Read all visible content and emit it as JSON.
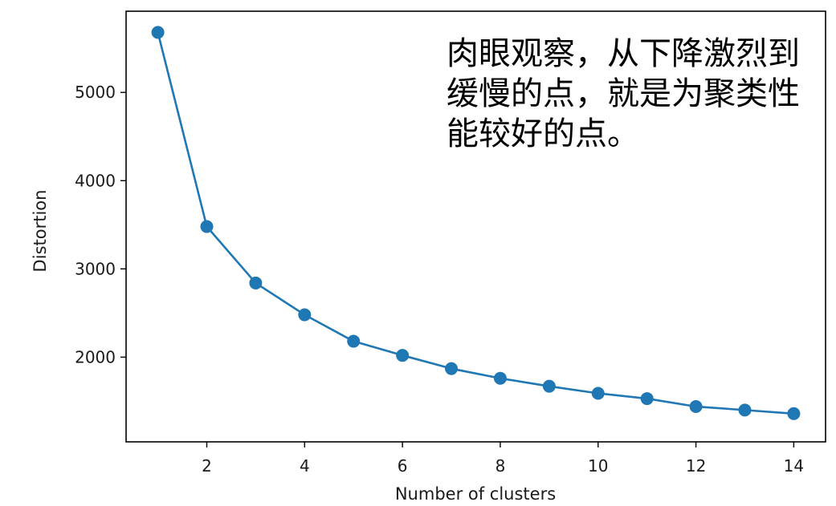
{
  "chart_data": {
    "type": "line",
    "title": "",
    "xlabel": "Number of clusters",
    "ylabel": "Distortion",
    "xlim": [
      0.35,
      14.65
    ],
    "ylim": [
      1040,
      5920
    ],
    "xticks": [
      2,
      4,
      6,
      8,
      10,
      12,
      14
    ],
    "yticks": [
      2000,
      3000,
      4000,
      5000
    ],
    "grid": false,
    "legend": "none",
    "series": [
      {
        "color": "#1f77b4",
        "marker": "circle",
        "x": [
          1,
          2,
          3,
          4,
          5,
          6,
          7,
          8,
          9,
          10,
          11,
          12,
          13,
          14
        ],
        "y": [
          5680,
          3480,
          2840,
          2480,
          2180,
          2020,
          1870,
          1760,
          1670,
          1590,
          1530,
          1440,
          1400,
          1360
        ]
      }
    ],
    "annotation": {
      "lines": [
        "肉眼观察，从下降激烈到",
        "缓慢的点，就是为聚类性",
        "能较好的点。"
      ]
    }
  }
}
